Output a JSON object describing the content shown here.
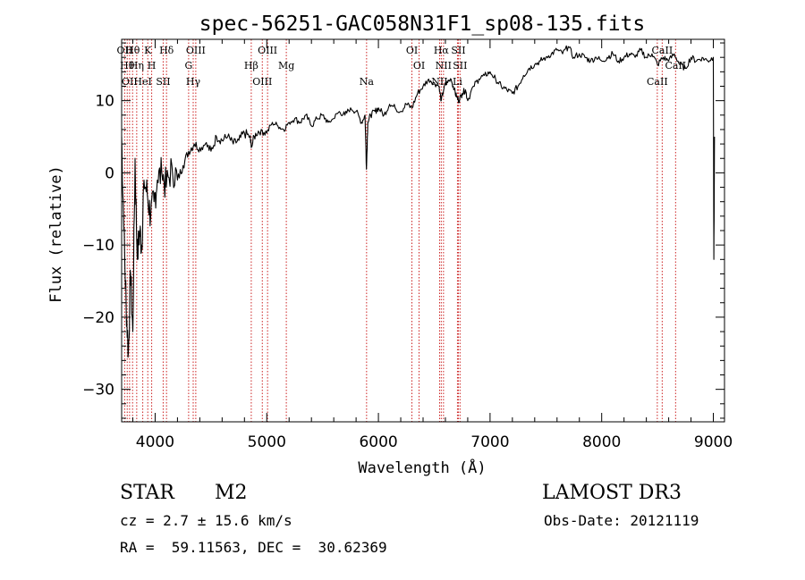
{
  "chart_data": {
    "type": "line",
    "title": "spec-56251-GAC058N31F1_sp08-135.fits",
    "xlabel": "Wavelength (Å)",
    "ylabel": "Flux (relative)",
    "xlim": [
      3700,
      9100
    ],
    "ylim": [
      -34.5,
      18.5
    ],
    "xticks": [
      4000,
      5000,
      6000,
      7000,
      8000,
      9000
    ],
    "yticks": [
      -30,
      -20,
      -10,
      0,
      10
    ],
    "series": [
      {
        "name": "flux",
        "x": [
          3700,
          3720,
          3740,
          3760,
          3780,
          3800,
          3820,
          3840,
          3860,
          3880,
          3900,
          3930,
          3960,
          3990,
          4020,
          4060,
          4100,
          4150,
          4200,
          4250,
          4300,
          4350,
          4400,
          4450,
          4500,
          4550,
          4600,
          4650,
          4700,
          4750,
          4800,
          4850,
          4861,
          4900,
          4950,
          5000,
          5050,
          5100,
          5150,
          5200,
          5250,
          5300,
          5350,
          5400,
          5450,
          5500,
          5550,
          5600,
          5650,
          5700,
          5750,
          5800,
          5850,
          5880,
          5893,
          5905,
          5930,
          5970,
          6000,
          6050,
          6100,
          6150,
          6200,
          6250,
          6300,
          6350,
          6400,
          6450,
          6500,
          6540,
          6563,
          6590,
          6620,
          6650,
          6680,
          6700,
          6720,
          6750,
          6780,
          6800,
          6850,
          6900,
          6950,
          7000,
          7050,
          7100,
          7150,
          7200,
          7250,
          7300,
          7350,
          7400,
          7450,
          7500,
          7550,
          7600,
          7650,
          7700,
          7750,
          7800,
          7850,
          7900,
          7950,
          8000,
          8050,
          8100,
          8150,
          8200,
          8250,
          8300,
          8350,
          8400,
          8450,
          8500,
          8550,
          8600,
          8650,
          8700,
          8750,
          8800,
          8850,
          8900,
          8950,
          9000,
          9005,
          9010
        ],
        "values": [
          5.0,
          -8.0,
          -18.0,
          -25.0,
          -14.0,
          -22.0,
          2.0,
          -12.0,
          -8.0,
          -10.0,
          -1.0,
          -3.0,
          -6.0,
          -4.0,
          -1.0,
          0.0,
          -2.0,
          1.0,
          -1.0,
          1.0,
          3.0,
          4.0,
          3.5,
          4.0,
          3.0,
          5.0,
          4.5,
          5.0,
          4.0,
          4.5,
          5.5,
          5.0,
          3.5,
          5.5,
          6.0,
          5.5,
          7.0,
          6.5,
          6.0,
          7.0,
          7.5,
          7.0,
          8.0,
          6.5,
          7.5,
          8.0,
          7.0,
          7.5,
          8.5,
          8.0,
          9.0,
          8.5,
          7.0,
          8.0,
          0.5,
          7.0,
          8.0,
          8.5,
          9.0,
          8.0,
          9.5,
          9.0,
          8.5,
          9.5,
          9.0,
          11.0,
          12.0,
          13.0,
          12.5,
          12.0,
          10.0,
          12.0,
          12.5,
          13.0,
          11.5,
          10.5,
          10.0,
          11.0,
          11.5,
          10.0,
          12.0,
          13.0,
          13.5,
          14.0,
          13.0,
          12.0,
          11.5,
          11.0,
          12.0,
          13.5,
          14.5,
          15.0,
          15.5,
          16.0,
          16.5,
          17.0,
          16.5,
          17.5,
          16.0,
          16.5,
          16.0,
          15.5,
          16.0,
          15.5,
          16.0,
          16.5,
          15.5,
          16.0,
          16.5,
          16.0,
          17.0,
          16.0,
          16.5,
          15.0,
          16.0,
          15.5,
          16.5,
          15.0,
          14.5,
          16.0,
          15.5,
          16.0,
          15.5,
          16.0,
          -12.0,
          5.0
        ]
      }
    ],
    "lines": [
      {
        "wl": 3727,
        "label": "OII"
      },
      {
        "wl": 3750,
        "label": "Hθ"
      },
      {
        "wl": 3771,
        "label": "OII"
      },
      {
        "wl": 3798,
        "label": "Hθ"
      },
      {
        "wl": 3835,
        "label": "Hη"
      },
      {
        "wl": 3889,
        "label": "HeI"
      },
      {
        "wl": 3934,
        "label": "K"
      },
      {
        "wl": 3969,
        "label": "H"
      },
      {
        "wl": 4072,
        "label": "SII"
      },
      {
        "wl": 4102,
        "label": "Hδ"
      },
      {
        "wl": 4300,
        "label": "G"
      },
      {
        "wl": 4341,
        "label": "Hγ"
      },
      {
        "wl": 4364,
        "label": "OIII"
      },
      {
        "wl": 4861,
        "label": "Hβ"
      },
      {
        "wl": 4960,
        "label": "OIII"
      },
      {
        "wl": 5007,
        "label": "OIII"
      },
      {
        "wl": 5175,
        "label": "Mg"
      },
      {
        "wl": 5894,
        "label": "Na"
      },
      {
        "wl": 6300,
        "label": "OI"
      },
      {
        "wl": 6364,
        "label": "OI"
      },
      {
        "wl": 6548,
        "label": "NII"
      },
      {
        "wl": 6563,
        "label": "Hα"
      },
      {
        "wl": 6583,
        "label": "NII"
      },
      {
        "wl": 6708,
        "label": "Li"
      },
      {
        "wl": 6716,
        "label": "SII"
      },
      {
        "wl": 6731,
        "label": "SII"
      },
      {
        "wl": 8498,
        "label": "CaII"
      },
      {
        "wl": 8542,
        "label": "CaII"
      },
      {
        "wl": 8662,
        "label": "CaII"
      }
    ]
  },
  "info": {
    "class": "STAR",
    "subclass": "M2",
    "survey": "LAMOST DR3",
    "cz": "cz = 2.7 ± 15.6 km/s",
    "obsdate": "Obs-Date: 20121119",
    "radec": "RA =  59.11563, DEC =  30.62369"
  }
}
